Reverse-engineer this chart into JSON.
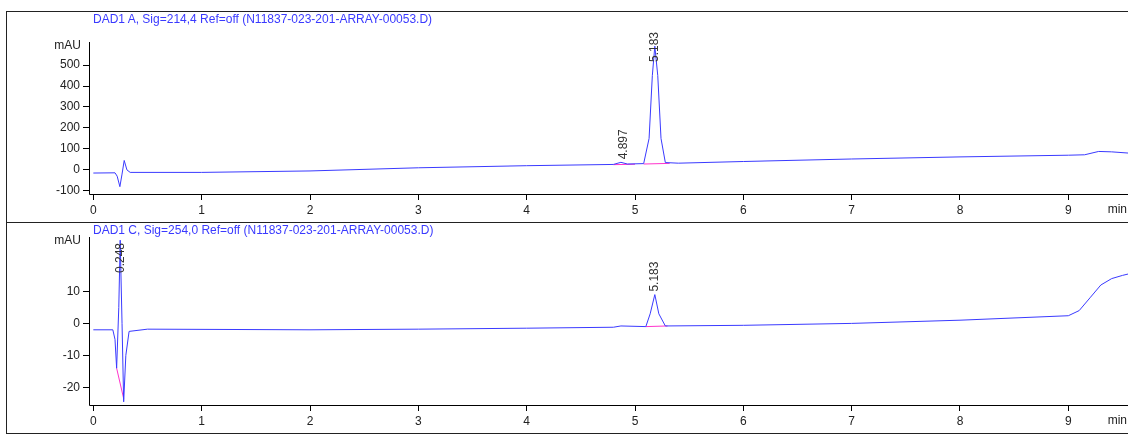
{
  "chart_data": [
    {
      "type": "line",
      "title": "DAD1 A, Sig=214,4 Ref=off (N11837-023-201-ARRAY-00053.D)",
      "ylabel": "mAU",
      "xlabel": "min",
      "series": [
        {
          "color": "#3a3aff",
          "x": [
            0,
            0.2,
            0.22,
            0.245,
            0.265,
            0.285,
            0.31,
            0.34,
            1,
            2,
            3,
            4,
            4.8,
            4.87,
            4.93,
            5.08,
            5.13,
            5.16,
            5.183,
            5.21,
            5.24,
            5.28,
            5.4,
            6,
            7,
            8,
            9,
            9.15,
            9.28,
            9.4,
            9.56
          ],
          "values": [
            -15,
            -14,
            -30,
            -80,
            -20,
            45,
            0,
            -12,
            -12,
            -5,
            10,
            20,
            26,
            36,
            28,
            30,
            150,
            450,
            590,
            450,
            150,
            35,
            32,
            40,
            52,
            62,
            70,
            72,
            88,
            86,
            80
          ]
        },
        {
          "type": "line",
          "color": "#ff33cc",
          "x": [
            4.8,
            5.0,
            null,
            5.08,
            5.32
          ],
          "values": [
            25,
            27,
            null,
            28,
            31
          ]
        }
      ],
      "xlim": [
        -0.04,
        9.56
      ],
      "ylim": [
        -115,
        610
      ],
      "xticks": [
        0,
        1,
        2,
        3,
        4,
        5,
        6,
        7,
        8,
        9
      ],
      "yticks": [
        -100,
        0,
        100,
        200,
        300,
        400,
        500
      ],
      "annotations": [
        {
          "text": "4.897",
          "x": 4.897,
          "y": 36
        },
        {
          "text": "5.183",
          "x": 5.183,
          "y": 590
        }
      ],
      "grid": false,
      "legend": false,
      "marker": "none"
    },
    {
      "type": "line",
      "title": "DAD1 C, Sig=254,0 Ref=off (N11837-023-201-ARRAY-00053.D)",
      "ylabel": "mAU",
      "xlabel": "min",
      "series": [
        {
          "color": "#3a3aff",
          "x": [
            0,
            0.18,
            0.2,
            0.215,
            0.235,
            0.248,
            0.265,
            0.28,
            0.3,
            0.33,
            0.5,
            2,
            3,
            4,
            4.8,
            4.87,
            5.1,
            5.14,
            5.183,
            5.22,
            5.28,
            6,
            7,
            8,
            9,
            9.1,
            9.2,
            9.3,
            9.4,
            9.5,
            9.56
          ],
          "values": [
            -2,
            -2,
            -5,
            -14,
            5,
            26,
            0,
            -24.5,
            -10,
            -2.5,
            -1.8,
            -2,
            -1.8,
            -1.5,
            -1.2,
            -0.8,
            -1,
            3,
            9,
            3,
            -0.8,
            -0.6,
            0,
            1,
            2.4,
            4,
            8,
            12,
            14,
            15,
            15.5
          ]
        },
        {
          "type": "line",
          "color": "#ff33cc",
          "x": [
            0.215,
            0.28,
            null,
            5.1,
            5.3
          ],
          "values": [
            -14,
            -23.5,
            null,
            -1,
            -0.8
          ]
        }
      ],
      "xlim": [
        -0.04,
        9.56
      ],
      "ylim": [
        -25.5,
        27
      ],
      "xticks": [
        0,
        1,
        2,
        3,
        4,
        5,
        6,
        7,
        8,
        9
      ],
      "yticks": [
        -20,
        -10,
        0,
        10
      ],
      "annotations": [
        {
          "text": "0.248",
          "x": 0.248,
          "y": 26
        },
        {
          "text": "5.183",
          "x": 5.183,
          "y": 9
        }
      ],
      "grid": false,
      "legend": false,
      "marker": "none"
    }
  ]
}
